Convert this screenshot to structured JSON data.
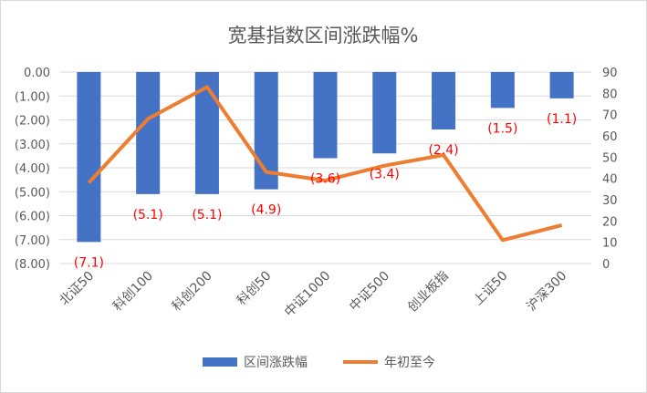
{
  "chart_data": {
    "type": "bar+line",
    "title": "宽基指数区间涨跌幅%",
    "categories": [
      "北证50",
      "科创100",
      "科创200",
      "科创50",
      "中证1000",
      "中证500",
      "创业板指",
      "上证50",
      "沪深300"
    ],
    "series": [
      {
        "name": "区间涨跌幅",
        "type": "bar",
        "axis": "left",
        "color": "#4472C4",
        "values": [
          -7.1,
          -5.1,
          -5.1,
          -4.9,
          -3.6,
          -3.4,
          -2.4,
          -1.5,
          -1.1
        ],
        "data_labels": [
          "(7.1)",
          "(5.1)",
          "(5.1)",
          "(4.9)",
          "(3.6)",
          "(3.4)",
          "(2.4)",
          "(1.5)",
          "(1.1)"
        ]
      },
      {
        "name": "年初至今",
        "type": "line",
        "axis": "right",
        "color": "#ED7D31",
        "values": [
          38,
          68,
          83,
          43,
          39,
          46,
          51,
          11,
          18
        ]
      }
    ],
    "left_axis": {
      "range": [
        -8,
        0
      ],
      "ticks": [
        "0.00",
        "(1.00)",
        "(2.00)",
        "(3.00)",
        "(4.00)",
        "(5.00)",
        "(6.00)",
        "(7.00)",
        "(8.00)"
      ]
    },
    "right_axis": {
      "range": [
        0,
        90
      ],
      "ticks": [
        "90",
        "80",
        "70",
        "60",
        "50",
        "40",
        "30",
        "20",
        "10",
        "0"
      ]
    },
    "grid": true,
    "legend_position": "bottom",
    "label_color": "#FF0000"
  }
}
